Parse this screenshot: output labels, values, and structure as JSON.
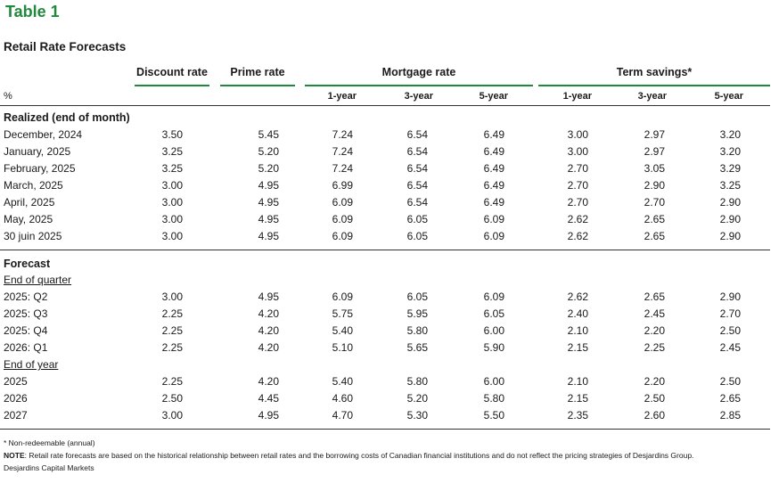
{
  "title": "Table 1",
  "subtitle": "Retail Rate Forecasts",
  "headers": {
    "discount": "Discount rate",
    "prime": "Prime rate",
    "mortgage": "Mortgage rate",
    "term": "Term savings*",
    "percent": "%",
    "sub": [
      "1-year",
      "3-year",
      "5-year",
      "1-year",
      "3-year",
      "5-year"
    ]
  },
  "realized": {
    "label": "Realized (end of month)",
    "rows": [
      {
        "label": "December, 2024",
        "values": [
          "3.50",
          "5.45",
          "7.24",
          "6.54",
          "6.49",
          "3.00",
          "2.97",
          "3.20"
        ]
      },
      {
        "label": "January, 2025",
        "values": [
          "3.25",
          "5.20",
          "7.24",
          "6.54",
          "6.49",
          "3.00",
          "2.97",
          "3.20"
        ]
      },
      {
        "label": "February, 2025",
        "values": [
          "3.25",
          "5.20",
          "7.24",
          "6.54",
          "6.49",
          "2.70",
          "3.05",
          "3.29"
        ]
      },
      {
        "label": "March, 2025",
        "values": [
          "3.00",
          "4.95",
          "6.99",
          "6.54",
          "6.49",
          "2.70",
          "2.90",
          "3.25"
        ]
      },
      {
        "label": "April, 2025",
        "values": [
          "3.00",
          "4.95",
          "6.09",
          "6.54",
          "6.49",
          "2.70",
          "2.70",
          "2.90"
        ]
      },
      {
        "label": "May, 2025",
        "values": [
          "3.00",
          "4.95",
          "6.09",
          "6.05",
          "6.09",
          "2.62",
          "2.65",
          "2.90"
        ]
      },
      {
        "label": "30 juin 2025",
        "values": [
          "3.00",
          "4.95",
          "6.09",
          "6.05",
          "6.09",
          "2.62",
          "2.65",
          "2.90"
        ]
      }
    ]
  },
  "forecast": {
    "label": "Forecast",
    "quarter_label": "End of quarter",
    "quarter_rows": [
      {
        "label": "2025: Q2",
        "values": [
          "3.00",
          "4.95",
          "6.09",
          "6.05",
          "6.09",
          "2.62",
          "2.65",
          "2.90"
        ]
      },
      {
        "label": "2025: Q3",
        "values": [
          "2.25",
          "4.20",
          "5.75",
          "5.95",
          "6.05",
          "2.40",
          "2.45",
          "2.70"
        ]
      },
      {
        "label": "2025: Q4",
        "values": [
          "2.25",
          "4.20",
          "5.40",
          "5.80",
          "6.00",
          "2.10",
          "2.20",
          "2.50"
        ]
      },
      {
        "label": "2026: Q1",
        "values": [
          "2.25",
          "4.20",
          "5.10",
          "5.65",
          "5.90",
          "2.15",
          "2.25",
          "2.45"
        ]
      }
    ],
    "year_label": "End of year",
    "year_rows": [
      {
        "label": "2025",
        "values": [
          "2.25",
          "4.20",
          "5.40",
          "5.80",
          "6.00",
          "2.10",
          "2.20",
          "2.50"
        ]
      },
      {
        "label": "2026",
        "values": [
          "2.50",
          "4.45",
          "4.60",
          "5.20",
          "5.80",
          "2.15",
          "2.50",
          "2.65"
        ]
      },
      {
        "label": "2027",
        "values": [
          "3.00",
          "4.95",
          "4.70",
          "5.30",
          "5.50",
          "2.35",
          "2.60",
          "2.85"
        ]
      }
    ]
  },
  "footnotes": {
    "nonredeemable": "* Non-redeemable (annual)",
    "note_label": "NOTE",
    "note_text": ": Retail rate forecasts are based on the historical relationship between retail rates and the borrowing costs of Canadian financial institutions and do not reflect the pricing strategies of Desjardins Group.",
    "source": "Desjardins Capital Markets"
  },
  "colors": {
    "accent": "#1f8a3c",
    "text": "#1a1a1a"
  }
}
